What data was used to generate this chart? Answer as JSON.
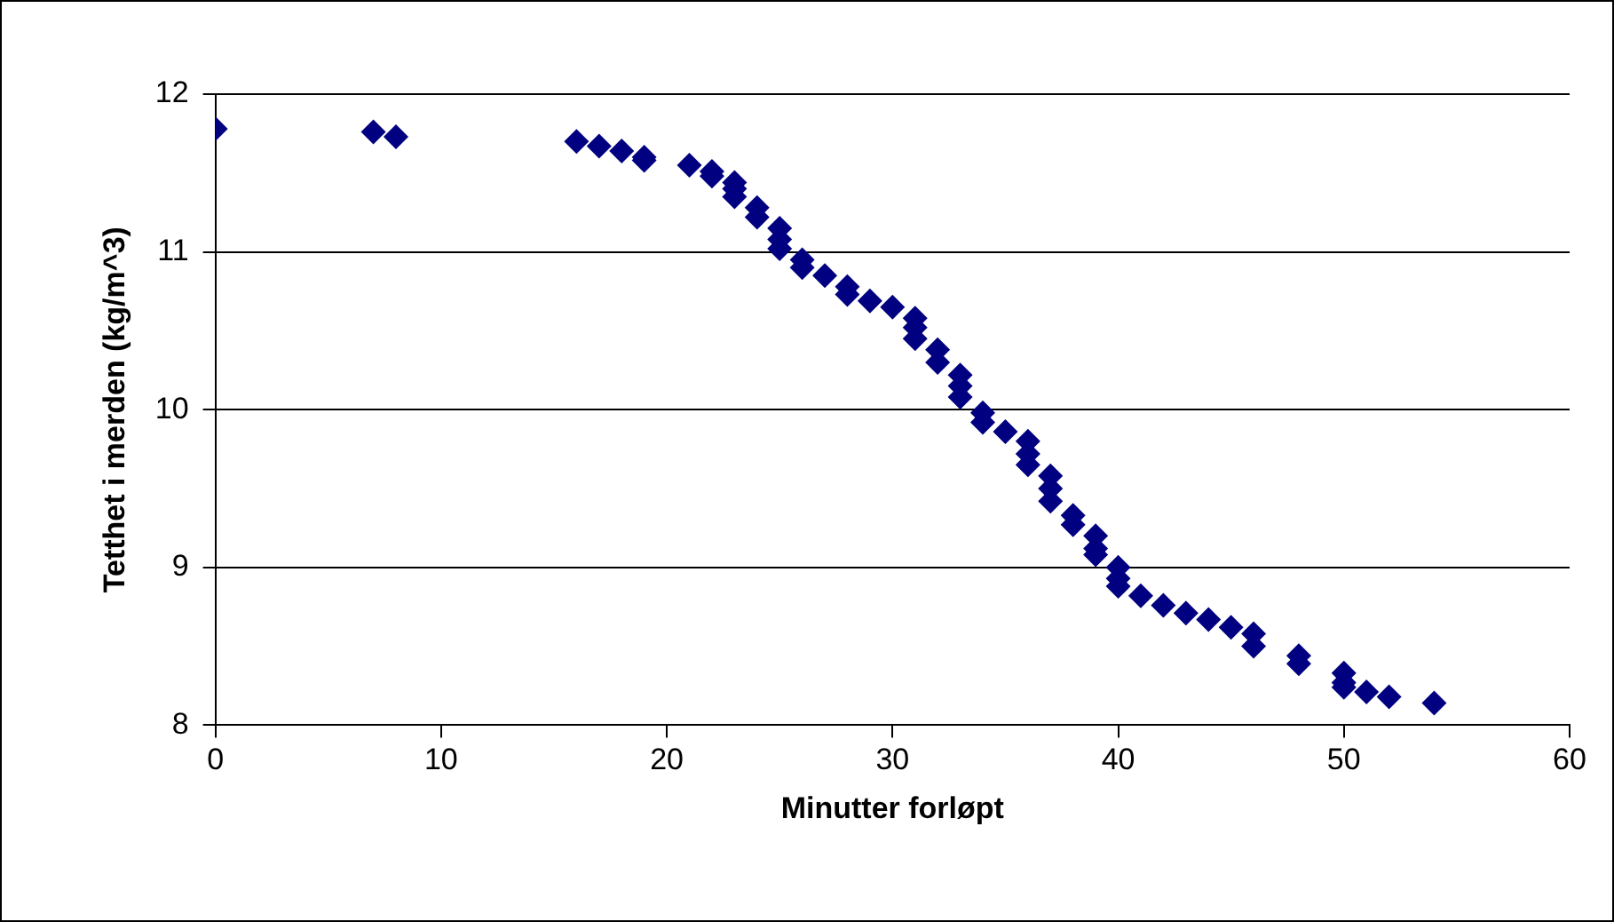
{
  "chart_data": {
    "type": "scatter",
    "xlabel": "Minutter forløpt",
    "ylabel": "Tetthet i merden (kg/m^3)",
    "marker": "diamond",
    "grid": "y",
    "legend": false,
    "xlim": [
      0,
      60
    ],
    "xticks": [
      0,
      10,
      20,
      30,
      40,
      50,
      60
    ],
    "ylim": [
      8,
      12
    ],
    "yticks": [
      8,
      9,
      10,
      11,
      12
    ],
    "series": [
      {
        "color": "#000080",
        "x": [
          0,
          7,
          8,
          16,
          17,
          18,
          19,
          19,
          21,
          22,
          22,
          23,
          23,
          23,
          24,
          24,
          25,
          25,
          25,
          26,
          26,
          27,
          28,
          28,
          29,
          30,
          31,
          31,
          31,
          32,
          32,
          33,
          33,
          33,
          34,
          34,
          35,
          36,
          36,
          36,
          37,
          37,
          37,
          38,
          38,
          39,
          39,
          39,
          40,
          40,
          40,
          41,
          42,
          43,
          44,
          45,
          46,
          46,
          48,
          48,
          50,
          50,
          50,
          51,
          52,
          54
        ],
        "values": [
          11.78,
          11.76,
          11.73,
          11.7,
          11.67,
          11.64,
          11.6,
          11.58,
          11.55,
          11.51,
          11.48,
          11.44,
          11.4,
          11.35,
          11.28,
          11.22,
          11.15,
          11.08,
          11.02,
          10.95,
          10.9,
          10.85,
          10.78,
          10.73,
          10.69,
          10.65,
          10.58,
          10.52,
          10.45,
          10.38,
          10.3,
          10.22,
          10.15,
          10.08,
          9.98,
          9.92,
          9.86,
          9.8,
          9.72,
          9.65,
          9.58,
          9.5,
          9.42,
          9.33,
          9.27,
          9.2,
          9.12,
          9.08,
          9.0,
          8.93,
          8.88,
          8.82,
          8.76,
          8.71,
          8.67,
          8.62,
          8.58,
          8.5,
          8.44,
          8.39,
          8.33,
          8.27,
          8.24,
          8.21,
          8.18,
          8.14
        ]
      }
    ]
  }
}
